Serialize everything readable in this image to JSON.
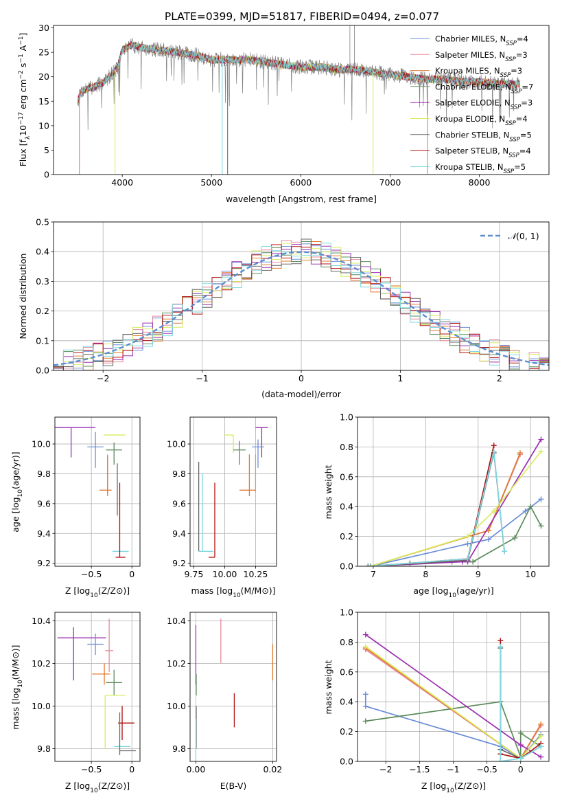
{
  "figure": {
    "title": "PLATE=0399, MJD=51817, FIBERID=0494, z=0.077",
    "colors": {
      "Chabrier MILES": "#6a8dd9",
      "Salpeter MILES": "#e88aa0",
      "Kroupa MILES": "#e07a30",
      "Chabrier ELODIE": "#5a8a5a",
      "Salpeter ELODIE": "#9b30b0",
      "Kroupa ELODIE": "#d8ec5c",
      "Chabrier STELIB": "#666666",
      "Salpeter STELIB": "#b01010",
      "Kroupa STELIB": "#80d8e0"
    }
  },
  "chart_data": [
    {
      "id": "spectrum",
      "type": "line",
      "xlabel": "wavelength [Angstrom, rest frame]",
      "ylabel_parts": [
        "Flux [f",
        "λ",
        "10",
        "−17",
        " erg cm",
        "−2",
        " s",
        "−1",
        " A",
        "−1",
        "]"
      ],
      "xlim": [
        3230,
        8780
      ],
      "ylim": [
        0,
        30.5
      ],
      "xticks": [
        4000,
        5000,
        6000,
        7000,
        8000
      ],
      "yticks": [
        0,
        5,
        10,
        15,
        20,
        25,
        30
      ],
      "legend_position": "top-right",
      "legend": [
        {
          "model": "Chabrier MILES",
          "n": "4"
        },
        {
          "model": "Salpeter MILES",
          "n": "3"
        },
        {
          "model": "Kroupa MILES",
          "n": "3"
        },
        {
          "model": "Chabrier ELODIE",
          "n": "7"
        },
        {
          "model": "Salpeter ELODIE",
          "n": "3"
        },
        {
          "model": "Kroupa ELODIE",
          "n": "4"
        },
        {
          "model": "Chabrier STELIB",
          "n": "5"
        },
        {
          "model": "Salpeter STELIB",
          "n": "4"
        },
        {
          "model": "Kroupa STELIB",
          "n": "5"
        }
      ],
      "continuum": {
        "x": [
          3500,
          3540,
          3600,
          3700,
          3800,
          3900,
          3950,
          4000,
          4100,
          4200,
          4400,
          4600,
          4800,
          5000,
          5200,
          5400,
          5600,
          5800,
          6000,
          6200,
          6400,
          6600,
          6800,
          7000,
          7200,
          7400,
          7600,
          7800,
          8000,
          8200,
          8450
        ],
        "y": [
          15,
          17,
          17.5,
          18,
          19,
          21,
          22,
          25.5,
          26.5,
          26,
          25.5,
          25,
          24.5,
          23.5,
          23.5,
          23.5,
          23,
          22.5,
          22,
          22,
          21.5,
          21.5,
          21,
          20.5,
          20,
          19.5,
          19.5,
          19,
          19,
          18.5,
          18.5
        ]
      },
      "observed_spikes": [
        {
          "x": 6550,
          "y": 30.5
        },
        {
          "x": 6600,
          "y": 30.5
        }
      ],
      "model_dropouts": [
        {
          "x": 3520,
          "model": "Kroupa MILES"
        },
        {
          "x": 3920,
          "model": "Kroupa ELODIE"
        },
        {
          "x": 5120,
          "model": "Kroupa STELIB"
        },
        {
          "x": 5180,
          "model": "Chabrier STELIB"
        },
        {
          "x": 6810,
          "model": "Kroupa ELODIE"
        },
        {
          "x": 7420,
          "model": "Kroupa MILES"
        }
      ]
    },
    {
      "id": "residuals",
      "type": "histogram",
      "xlabel": "(data-model)/error",
      "ylabel": "Normed distribution",
      "xlim": [
        -2.5,
        2.5
      ],
      "ylim": [
        0,
        0.5
      ],
      "xticks": [
        -2,
        -1,
        0,
        1,
        2
      ],
      "yticks": [
        0.0,
        0.1,
        0.2,
        0.3,
        0.4,
        0.5
      ],
      "grid": true,
      "legend_position": "top-right",
      "reference_curve": {
        "label_pre": "𝒩",
        "label_post": "(0, 1)",
        "type": "normal",
        "mean": 0,
        "sigma": 1
      },
      "bins": {
        "start": -2.5,
        "width": 0.1,
        "count": 50
      }
    },
    {
      "id": "age_vs_Z",
      "type": "scatter",
      "xlabel_pre": "Z [log",
      "xlabel_sub": "10",
      "xlabel_post": "(Z/Z⊙)]",
      "ylabel_pre": "age  [log",
      "ylabel_sub": "10",
      "ylabel_post": "(age/yr)]",
      "xlim": [
        -0.95,
        0.1
      ],
      "ylim": [
        9.18,
        10.18
      ],
      "xticks": [
        -0.5,
        0.0
      ],
      "yticks": [
        9.2,
        9.4,
        9.6,
        9.8,
        10.0
      ],
      "grid": true,
      "points": [
        {
          "model": "Salpeter ELODIE",
          "x": -0.75,
          "y": 10.11,
          "xlo": 0.3,
          "xhi": 0.3,
          "ylo": 0.2,
          "yhi": 0.0
        },
        {
          "model": "Kroupa ELODIE",
          "x": -0.28,
          "y": 10.06,
          "xlo": 0.07,
          "xhi": 0.2,
          "ylo": 0.0,
          "yhi": 0.0
        },
        {
          "model": "Chabrier MILES",
          "x": -0.45,
          "y": 9.98,
          "xlo": 0.1,
          "xhi": 0.1,
          "ylo": 0.14,
          "yhi": 0.1
        },
        {
          "model": "Chabrier ELODIE",
          "x": -0.22,
          "y": 9.96,
          "xlo": 0.1,
          "xhi": 0.1,
          "ylo": 0.1,
          "yhi": 0.05
        },
        {
          "model": "Salpeter MILES",
          "x": -0.3,
          "y": 9.87,
          "xlo": 0.0,
          "xhi": 0.0,
          "ylo": 0.2,
          "yhi": 0.06
        },
        {
          "model": "Kroupa MILES",
          "x": -0.3,
          "y": 9.69,
          "xlo": 0.1,
          "xhi": 0.05,
          "ylo": 0.04,
          "yhi": 0.23
        },
        {
          "model": "Chabrier STELIB",
          "x": -0.18,
          "y": 9.52,
          "xlo": 0.0,
          "xhi": 0.0,
          "ylo": 0.0,
          "yhi": 0.35
        },
        {
          "model": "Kroupa STELIB",
          "x": -0.12,
          "y": 9.28,
          "xlo": 0.12,
          "xhi": 0.08,
          "ylo": 0.0,
          "yhi": 0.0
        },
        {
          "model": "Salpeter STELIB",
          "x": -0.15,
          "y": 9.24,
          "xlo": 0.05,
          "xhi": 0.07,
          "ylo": 0.0,
          "yhi": 0.5
        }
      ]
    },
    {
      "id": "age_vs_mass",
      "type": "scatter",
      "xlabel_pre": "mass [log",
      "xlabel_sub": "10",
      "xlabel_post": "(M/M⊙)]",
      "xlim": [
        9.72,
        10.42
      ],
      "ylim": [
        9.18,
        10.18
      ],
      "xticks": [
        9.75,
        10.0,
        10.25
      ],
      "xtick_labels": [
        "9.75",
        "10.00",
        "10.25"
      ],
      "yticks": [
        9.2,
        9.4,
        9.6,
        9.8,
        10.0
      ],
      "grid": true,
      "points": [
        {
          "model": "Salpeter ELODIE",
          "x": 10.3,
          "y": 10.11,
          "xlo": 0.05,
          "xhi": 0.05,
          "ylo": 0.2,
          "yhi": 0.0
        },
        {
          "model": "Kroupa ELODIE",
          "x": 10.07,
          "y": 10.06,
          "xlo": 0.07,
          "xhi": 0.0,
          "ylo": 0.12,
          "yhi": 0.0
        },
        {
          "model": "Chabrier MILES",
          "x": 10.27,
          "y": 9.98,
          "xlo": 0.05,
          "xhi": 0.05,
          "ylo": 0.14,
          "yhi": 0.05
        },
        {
          "model": "Chabrier ELODIE",
          "x": 10.12,
          "y": 9.96,
          "xlo": 0.05,
          "xhi": 0.05,
          "ylo": 0.1,
          "yhi": 0.06
        },
        {
          "model": "Salpeter MILES",
          "x": 10.25,
          "y": 9.88,
          "xlo": 0.0,
          "xhi": 0.0,
          "ylo": 0.2,
          "yhi": 0.05
        },
        {
          "model": "Kroupa MILES",
          "x": 10.2,
          "y": 9.69,
          "xlo": 0.08,
          "xhi": 0.05,
          "ylo": 0.04,
          "yhi": 0.24
        },
        {
          "model": "Salpeter STELIB",
          "x": 9.92,
          "y": 9.24,
          "xlo": 0.05,
          "xhi": 0.0,
          "ylo": 0.0,
          "yhi": 0.5
        },
        {
          "model": "Chabrier STELIB",
          "x": 9.79,
          "y": 9.28,
          "xlo": 0.0,
          "xhi": 0.0,
          "ylo": 0.0,
          "yhi": 0.6
        },
        {
          "model": "Kroupa STELIB",
          "x": 9.82,
          "y": 9.28,
          "xlo": 0.03,
          "xhi": 0.09,
          "ylo": 0.0,
          "yhi": 0.52
        }
      ]
    },
    {
      "id": "massweight_vs_age",
      "type": "line",
      "xlabel_pre": "age  [log",
      "xlabel_sub": "10",
      "xlabel_post": "(age/yr)]",
      "ylabel": "mass weight",
      "xlim": [
        6.7,
        10.35
      ],
      "ylim": [
        0,
        1.0
      ],
      "xticks": [
        7,
        8,
        9,
        10
      ],
      "yticks": [
        0.0,
        0.2,
        0.4,
        0.6,
        0.8,
        1.0
      ],
      "grid": true,
      "series": [
        {
          "model": "Chabrier MILES",
          "x": [
            6.95,
            8.8,
            9.2,
            9.9,
            10.2
          ],
          "y": [
            0.0,
            0.15,
            0.18,
            0.37,
            0.45
          ]
        },
        {
          "model": "Salpeter MILES",
          "x": [
            6.95,
            9.2,
            9.8
          ],
          "y": [
            0.0,
            0.24,
            0.75
          ]
        },
        {
          "model": "Kroupa MILES",
          "x": [
            6.95,
            9.2,
            9.8
          ],
          "y": [
            0.0,
            0.24,
            0.76
          ]
        },
        {
          "model": "Chabrier ELODIE",
          "x": [
            6.9,
            7.7,
            8.5,
            8.9,
            9.7,
            10.0,
            10.2
          ],
          "y": [
            0.0,
            0.02,
            0.03,
            0.03,
            0.19,
            0.4,
            0.27
          ]
        },
        {
          "model": "Salpeter ELODIE",
          "x": [
            6.95,
            8.7,
            8.8,
            10.2
          ],
          "y": [
            0.0,
            0.03,
            0.03,
            0.85
          ]
        },
        {
          "model": "Kroupa ELODIE",
          "x": [
            6.95,
            8.8,
            9.3,
            10.2
          ],
          "y": [
            0.0,
            0.2,
            0.37,
            0.77
          ]
        },
        {
          "model": "Chabrier STELIB",
          "x": [
            6.95,
            8.8,
            9.3,
            9.5
          ],
          "y": [
            0.0,
            0.04,
            0.76,
            0.1
          ]
        },
        {
          "model": "Salpeter STELIB",
          "x": [
            6.95,
            8.8,
            9.3
          ],
          "y": [
            0.0,
            0.05,
            0.81
          ]
        },
        {
          "model": "Kroupa STELIB",
          "x": [
            6.95,
            8.8,
            9.3,
            9.5
          ],
          "y": [
            0.0,
            0.05,
            0.77,
            0.1
          ]
        }
      ]
    },
    {
      "id": "mass_vs_Z",
      "type": "scatter",
      "xlabel_pre": "Z [log",
      "xlabel_sub": "10",
      "xlabel_post": "(Z/Z⊙)]",
      "ylabel_pre": "mass [log",
      "ylabel_sub": "10",
      "ylabel_post": "(M/M⊙)]",
      "xlim": [
        -0.95,
        0.1
      ],
      "ylim": [
        9.74,
        10.44
      ],
      "xticks": [
        -0.5,
        0.0
      ],
      "yticks": [
        9.8,
        10.0,
        10.2,
        10.4
      ],
      "grid": true,
      "points": [
        {
          "model": "Salpeter ELODIE",
          "x": -0.72,
          "y": 10.32,
          "xlo": 0.2,
          "xhi": 0.4,
          "ylo": 0.2,
          "yhi": 0.05
        },
        {
          "model": "Chabrier MILES",
          "x": -0.45,
          "y": 10.29,
          "xlo": 0.1,
          "xhi": 0.1,
          "ylo": 0.05,
          "yhi": 0.05
        },
        {
          "model": "Salpeter MILES",
          "x": -0.28,
          "y": 10.26,
          "xlo": 0.05,
          "xhi": 0.05,
          "ylo": 0.1,
          "yhi": 0.15
        },
        {
          "model": "Kroupa MILES",
          "x": -0.34,
          "y": 10.15,
          "xlo": 0.15,
          "xhi": 0.07,
          "ylo": 0.05,
          "yhi": 0.05
        },
        {
          "model": "Chabrier ELODIE",
          "x": -0.22,
          "y": 10.11,
          "xlo": 0.1,
          "xhi": 0.1,
          "ylo": 0.06,
          "yhi": 0.06
        },
        {
          "model": "Kroupa ELODIE",
          "x": -0.33,
          "y": 10.05,
          "xlo": 0.0,
          "xhi": 0.25,
          "ylo": 0.25,
          "yhi": 0.0
        },
        {
          "model": "Salpeter STELIB",
          "x": -0.12,
          "y": 9.92,
          "xlo": 0.05,
          "xhi": 0.15,
          "ylo": 0.08,
          "yhi": 0.08
        },
        {
          "model": "Kroupa STELIB",
          "x": -0.12,
          "y": 9.81,
          "xlo": 0.1,
          "xhi": 0.1,
          "ylo": 0.0,
          "yhi": 0.0
        },
        {
          "model": "Chabrier STELIB",
          "x": -0.15,
          "y": 9.79,
          "xlo": 0.0,
          "xhi": 0.2,
          "ylo": 0.02,
          "yhi": 0.18
        }
      ]
    },
    {
      "id": "mass_vs_EBV",
      "type": "scatter",
      "xlabel": "E(B-V)",
      "xlim": [
        -0.0015,
        0.021
      ],
      "ylim": [
        9.74,
        10.44
      ],
      "xticks": [
        0.0,
        0.02
      ],
      "xtick_labels": [
        "0.00",
        "0.02"
      ],
      "yticks": [
        9.8,
        10.0,
        10.2,
        10.4
      ],
      "grid": true,
      "points": [
        {
          "model": "Salpeter ELODIE",
          "x": 0.0,
          "y": 10.3,
          "xlo": 0,
          "xhi": 0,
          "ylo": 0.2,
          "yhi": 0.08
        },
        {
          "model": "Salpeter MILES",
          "x": 0.0065,
          "y": 10.3,
          "xlo": 0,
          "xhi": 0,
          "ylo": 0.1,
          "yhi": 0.11
        },
        {
          "model": "Kroupa MILES",
          "x": 0.02,
          "y": 10.2,
          "xlo": 0,
          "xhi": 0,
          "ylo": 0.08,
          "yhi": 0.09
        },
        {
          "model": "Chabrier ELODIE",
          "x": 0.0001,
          "y": 10.1,
          "xlo": 0,
          "xhi": 0,
          "ylo": 0.05,
          "yhi": 0.05
        },
        {
          "model": "Salpeter STELIB",
          "x": 0.01,
          "y": 9.98,
          "xlo": 0,
          "xhi": 0,
          "ylo": 0.08,
          "yhi": 0.08
        },
        {
          "model": "Chabrier STELIB",
          "x": 0.0001,
          "y": 9.9,
          "xlo": 0,
          "xhi": 0,
          "ylo": 0.1,
          "yhi": 0.1
        },
        {
          "model": "Kroupa STELIB",
          "x": 0.0,
          "y": 9.84,
          "xlo": 0,
          "xhi": 0,
          "ylo": 0.1,
          "yhi": 0.1
        }
      ]
    },
    {
      "id": "massweight_vs_Z",
      "type": "line",
      "xlabel_pre": "Z [log",
      "xlabel_sub": "10",
      "xlabel_post": "(Z/Z⊙)]",
      "ylabel": "mass weight",
      "xlim": [
        -2.42,
        0.42
      ],
      "ylim": [
        0,
        1.0
      ],
      "xticks": [
        -2.0,
        -1.5,
        -1.0,
        -0.5,
        0.0
      ],
      "yticks": [
        0.0,
        0.2,
        0.4,
        0.6,
        0.8,
        1.0
      ],
      "grid": true,
      "series": [
        {
          "model": "Chabrier MILES",
          "x": [
            -2.3,
            -2.3,
            -0.3,
            0.0,
            0.3
          ],
          "y": [
            0.45,
            0.37,
            0.1,
            0.02,
            0.18
          ]
        },
        {
          "model": "Salpeter MILES",
          "x": [
            -2.3,
            0.0,
            0.3
          ],
          "y": [
            0.75,
            0.02,
            0.24
          ]
        },
        {
          "model": "Kroupa MILES",
          "x": [
            -2.3,
            0.0,
            0.3
          ],
          "y": [
            0.76,
            0.02,
            0.25
          ]
        },
        {
          "model": "Chabrier ELODIE",
          "x": [
            -2.3,
            -0.3,
            0.0,
            0.0,
            0.3
          ],
          "y": [
            0.27,
            0.4,
            0.03,
            0.19,
            0.1
          ]
        },
        {
          "model": "Salpeter ELODIE",
          "x": [
            -2.3,
            0.0,
            0.3
          ],
          "y": [
            0.85,
            0.11,
            0.03
          ]
        },
        {
          "model": "Kroupa ELODIE",
          "x": [
            -2.3,
            0.0,
            0.3
          ],
          "y": [
            0.77,
            0.02,
            0.17
          ]
        },
        {
          "model": "Chabrier STELIB",
          "x": [
            -0.3,
            -0.3,
            0.0,
            0.3
          ],
          "y": [
            0.76,
            0.08,
            0.02,
            0.1
          ]
        },
        {
          "model": "Salpeter STELIB",
          "x": [
            -0.3,
            -0.3,
            0.0,
            0.3
          ],
          "y": [
            0.81,
            0.05,
            0.02,
            0.12
          ]
        },
        {
          "model": "Kroupa STELIB",
          "x": [
            -0.3,
            -0.3,
            0.0,
            0.3
          ],
          "y": [
            0.77,
            0.0,
            0.02,
            0.1
          ]
        }
      ]
    }
  ]
}
